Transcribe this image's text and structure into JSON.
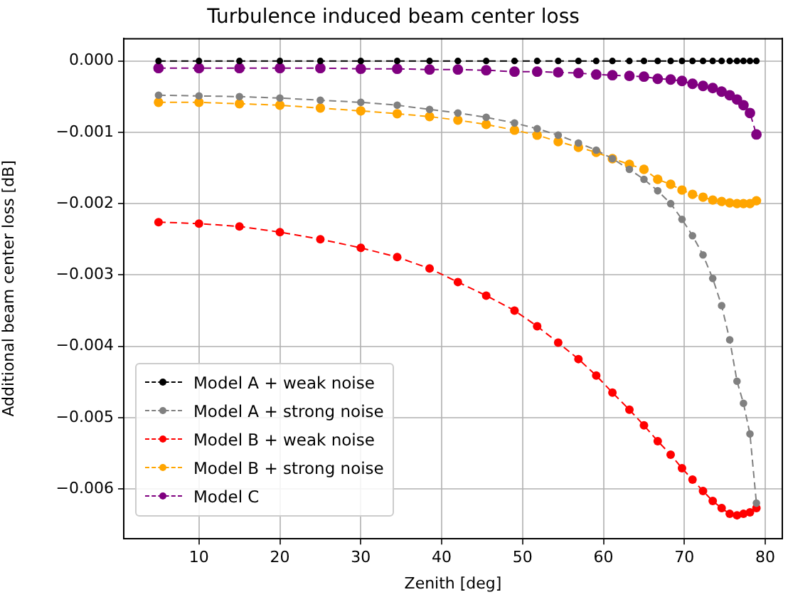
{
  "chart_data": {
    "type": "line",
    "title": "Turbulence induced beam center loss",
    "xlabel": "Zenith [deg]",
    "ylabel": "Additional beam center loss [dB]",
    "x": [
      5,
      10,
      15,
      20,
      25,
      30,
      34.5,
      38.5,
      42,
      45.5,
      49,
      51.8,
      54.4,
      56.9,
      59.1,
      61.1,
      63.2,
      65,
      66.7,
      68.3,
      69.7,
      71,
      72.3,
      73.5,
      74.6,
      75.6,
      76.5,
      77.3,
      78.1,
      78.9
    ],
    "series": [
      {
        "name": "Model A + weak noise",
        "color": "#000000",
        "values": [
          0,
          0,
          0,
          0,
          0,
          0,
          0,
          0,
          0,
          0,
          0,
          0,
          0,
          0,
          0,
          0,
          0,
          0,
          0,
          0,
          0,
          0,
          0,
          0,
          0,
          0,
          0,
          0,
          0,
          0
        ]
      },
      {
        "name": "Model A + strong noise",
        "color": "#808080",
        "values": [
          -0.00048,
          -0.00049,
          -0.0005,
          -0.00052,
          -0.00055,
          -0.00058,
          -0.00062,
          -0.00068,
          -0.00073,
          -0.00079,
          -0.00087,
          -0.00095,
          -0.00104,
          -0.00115,
          -0.00125,
          -0.00137,
          -0.00152,
          -0.00166,
          -0.00182,
          -0.002,
          -0.00222,
          -0.00245,
          -0.00272,
          -0.00305,
          -0.00343,
          -0.00391,
          -0.00449,
          -0.0048,
          -0.00523,
          -0.0062
        ]
      },
      {
        "name": "Model B + weak noise",
        "color": "#ff0000",
        "values": [
          -0.00226,
          -0.00228,
          -0.00232,
          -0.0024,
          -0.0025,
          -0.00262,
          -0.00275,
          -0.00291,
          -0.0031,
          -0.00329,
          -0.0035,
          -0.00372,
          -0.00395,
          -0.00418,
          -0.00441,
          -0.00465,
          -0.00489,
          -0.00511,
          -0.00533,
          -0.00552,
          -0.00571,
          -0.00587,
          -0.00603,
          -0.00617,
          -0.00627,
          -0.00635,
          -0.00637,
          -0.00635,
          -0.00633,
          -0.00627
        ]
      },
      {
        "name": "Model B + strong noise",
        "color": "#ffa500",
        "values": [
          -0.00058,
          -0.00058,
          -0.0006,
          -0.00062,
          -0.00066,
          -0.0007,
          -0.00074,
          -0.00078,
          -0.00083,
          -0.00089,
          -0.00097,
          -0.00104,
          -0.00113,
          -0.00121,
          -0.00128,
          -0.00137,
          -0.00145,
          -0.00152,
          -0.00166,
          -0.00173,
          -0.00181,
          -0.00187,
          -0.00191,
          -0.00195,
          -0.00197,
          -0.00199,
          -0.002,
          -0.002,
          -0.002,
          -0.00196
        ]
      },
      {
        "name": "Model C",
        "color": "#800080",
        "values": [
          -0.0001,
          -0.0001,
          -0.0001,
          -0.0001,
          -0.0001,
          -0.00011,
          -0.00011,
          -0.00012,
          -0.00012,
          -0.00013,
          -0.00015,
          -0.00015,
          -0.00016,
          -0.00017,
          -0.00019,
          -0.0002,
          -0.00021,
          -0.00022,
          -0.00025,
          -0.00026,
          -0.00028,
          -0.00032,
          -0.00035,
          -0.00038,
          -0.00043,
          -0.00048,
          -0.00054,
          -0.00062,
          -0.00073,
          -0.00103
        ]
      }
    ],
    "xlim": [
      0.7,
      82.1
    ],
    "xticks": [
      10,
      20,
      30,
      40,
      50,
      60,
      70,
      80
    ],
    "ylim": [
      -0.0067,
      0.00032
    ],
    "yticks": [
      {
        "value": 0,
        "label": "0.000"
      },
      {
        "value": -0.001,
        "label": "−0.001"
      },
      {
        "value": -0.002,
        "label": "−0.002"
      },
      {
        "value": -0.003,
        "label": "−0.003"
      },
      {
        "value": -0.004,
        "label": "−0.004"
      },
      {
        "value": -0.005,
        "label": "−0.005"
      },
      {
        "value": -0.006,
        "label": "−0.006"
      }
    ],
    "grid": true,
    "legend": "bottom left",
    "marker": "circle",
    "line_style": "dashed"
  }
}
